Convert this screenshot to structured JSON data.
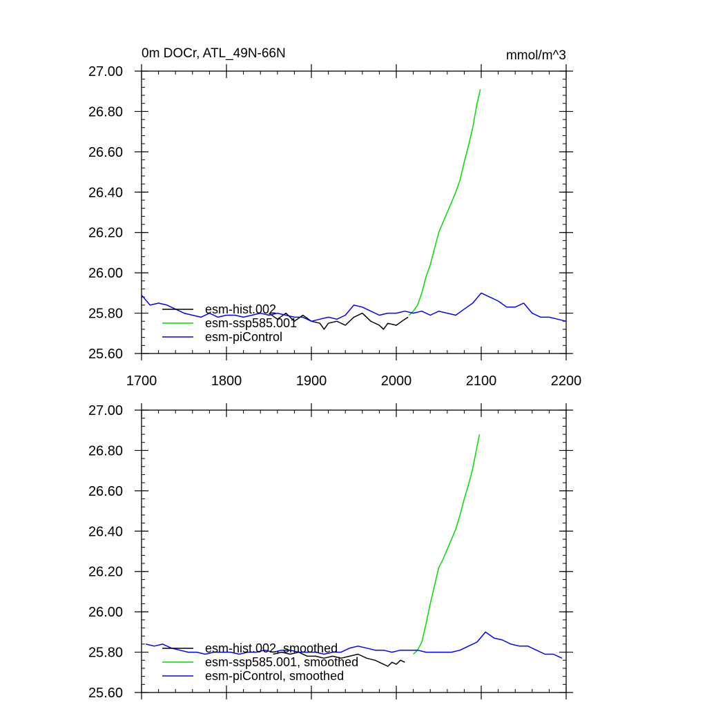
{
  "figure": {
    "title_left": "0m DOCr, ATL_49N-66N",
    "title_right": "mmol/m^3"
  },
  "chart_data": [
    {
      "type": "line",
      "title": "0m DOCr, ATL_49N-66N",
      "units": "mmol/m^3",
      "xlim": [
        1700,
        2200
      ],
      "ylim": [
        25.6,
        27.0
      ],
      "x_ticks": [
        "1700",
        "1800",
        "1900",
        "2000",
        "2100",
        "2200"
      ],
      "y_ticks": [
        "25.60",
        "25.80",
        "26.00",
        "26.20",
        "26.40",
        "26.60",
        "26.80",
        "27.00"
      ],
      "x_tick_values": [
        1700,
        1800,
        1900,
        2000,
        2100,
        2200
      ],
      "y_tick_values": [
        25.6,
        25.8,
        26.0,
        26.2,
        26.4,
        26.6,
        26.8,
        27.0
      ],
      "show_x_tick_labels": true,
      "legend_position": "bottom-left",
      "series": [
        {
          "name": "esm-hist.002",
          "color": "#000000",
          "x": [
            1850,
            1860,
            1870,
            1880,
            1890,
            1900,
            1910,
            1915,
            1920,
            1930,
            1940,
            1950,
            1960,
            1970,
            1980,
            1985,
            1990,
            2000,
            2010,
            2014
          ],
          "y": [
            25.8,
            25.77,
            25.8,
            25.76,
            25.79,
            25.76,
            25.75,
            25.72,
            25.75,
            25.76,
            25.74,
            25.78,
            25.8,
            25.76,
            25.74,
            25.72,
            25.75,
            25.74,
            25.77,
            25.78
          ]
        },
        {
          "name": "esm-ssp585.001",
          "color": "#00dd00",
          "x": [
            2015,
            2020,
            2025,
            2030,
            2035,
            2040,
            2045,
            2050,
            2055,
            2060,
            2065,
            2070,
            2075,
            2080,
            2085,
            2090,
            2095,
            2099
          ],
          "y": [
            25.79,
            25.81,
            25.84,
            25.9,
            25.98,
            26.04,
            26.12,
            26.2,
            26.25,
            26.3,
            26.35,
            26.4,
            26.46,
            26.55,
            26.63,
            26.72,
            26.84,
            26.91
          ]
        },
        {
          "name": "esm-piControl",
          "color": "#0000ff",
          "x": [
            1700,
            1710,
            1720,
            1730,
            1740,
            1750,
            1760,
            1770,
            1780,
            1790,
            1800,
            1810,
            1820,
            1830,
            1840,
            1850,
            1860,
            1870,
            1880,
            1890,
            1900,
            1910,
            1920,
            1930,
            1940,
            1950,
            1960,
            1970,
            1980,
            1990,
            2000,
            2010,
            2020,
            2030,
            2040,
            2050,
            2060,
            2070,
            2080,
            2090,
            2100,
            2110,
            2120,
            2130,
            2140,
            2150,
            2160,
            2170,
            2180,
            2190,
            2200
          ],
          "y": [
            25.89,
            25.84,
            25.85,
            25.84,
            25.82,
            25.8,
            25.79,
            25.78,
            25.8,
            25.78,
            25.79,
            25.79,
            25.78,
            25.79,
            25.8,
            25.79,
            25.8,
            25.79,
            25.78,
            25.78,
            25.76,
            25.77,
            25.78,
            25.77,
            25.79,
            25.84,
            25.83,
            25.81,
            25.79,
            25.8,
            25.8,
            25.81,
            25.8,
            25.81,
            25.79,
            25.81,
            25.8,
            25.79,
            25.82,
            25.85,
            25.9,
            25.88,
            25.86,
            25.83,
            25.83,
            25.85,
            25.8,
            25.78,
            25.78,
            25.77,
            25.76
          ]
        }
      ]
    },
    {
      "type": "line",
      "xlim": [
        1700,
        2200
      ],
      "ylim": [
        25.6,
        27.0
      ],
      "x_tick_values": [
        1700,
        1800,
        1900,
        2000,
        2100,
        2200
      ],
      "y_ticks": [
        "25.60",
        "25.80",
        "26.00",
        "26.20",
        "26.40",
        "26.60",
        "26.80",
        "27.00"
      ],
      "y_tick_values": [
        25.6,
        25.8,
        26.0,
        26.2,
        26.4,
        26.6,
        26.8,
        27.0
      ],
      "show_x_tick_labels": false,
      "legend_position": "bottom-left",
      "series": [
        {
          "name": "esm-hist.002, smoothed",
          "color": "#000000",
          "x": [
            1855,
            1865,
            1875,
            1885,
            1895,
            1905,
            1915,
            1925,
            1935,
            1945,
            1955,
            1965,
            1975,
            1985,
            1990,
            1995,
            2000,
            2005,
            2010
          ],
          "y": [
            25.79,
            25.8,
            25.79,
            25.8,
            25.78,
            25.78,
            25.77,
            25.78,
            25.77,
            25.78,
            25.79,
            25.77,
            25.76,
            25.74,
            25.73,
            25.75,
            25.74,
            25.76,
            25.75
          ]
        },
        {
          "name": "esm-ssp585.001, smoothed",
          "color": "#00dd00",
          "x": [
            2020,
            2025,
            2030,
            2035,
            2040,
            2045,
            2050,
            2055,
            2060,
            2065,
            2070,
            2075,
            2080,
            2085,
            2090,
            2095,
            2098
          ],
          "y": [
            25.79,
            25.81,
            25.85,
            25.94,
            26.04,
            26.13,
            26.22,
            26.26,
            26.31,
            26.36,
            26.41,
            26.48,
            26.56,
            26.63,
            26.71,
            26.82,
            26.88
          ]
        },
        {
          "name": "esm-piControl, smoothed",
          "color": "#0000ff",
          "x": [
            1705,
            1715,
            1725,
            1735,
            1745,
            1755,
            1765,
            1775,
            1785,
            1795,
            1805,
            1815,
            1825,
            1835,
            1845,
            1855,
            1865,
            1875,
            1885,
            1895,
            1905,
            1915,
            1925,
            1935,
            1945,
            1955,
            1965,
            1975,
            1985,
            1995,
            2005,
            2015,
            2025,
            2035,
            2045,
            2055,
            2065,
            2075,
            2085,
            2095,
            2105,
            2115,
            2125,
            2135,
            2145,
            2155,
            2165,
            2175,
            2185,
            2195
          ],
          "y": [
            25.84,
            25.83,
            25.84,
            25.82,
            25.81,
            25.8,
            25.8,
            25.79,
            25.8,
            25.8,
            25.8,
            25.79,
            25.8,
            25.8,
            25.81,
            25.8,
            25.81,
            25.81,
            25.8,
            25.8,
            25.8,
            25.79,
            25.8,
            25.8,
            25.82,
            25.83,
            25.82,
            25.81,
            25.81,
            25.8,
            25.81,
            25.81,
            25.81,
            25.8,
            25.8,
            25.8,
            25.8,
            25.81,
            25.83,
            25.85,
            25.9,
            25.87,
            25.86,
            25.84,
            25.83,
            25.83,
            25.81,
            25.79,
            25.79,
            25.77
          ]
        }
      ]
    }
  ]
}
